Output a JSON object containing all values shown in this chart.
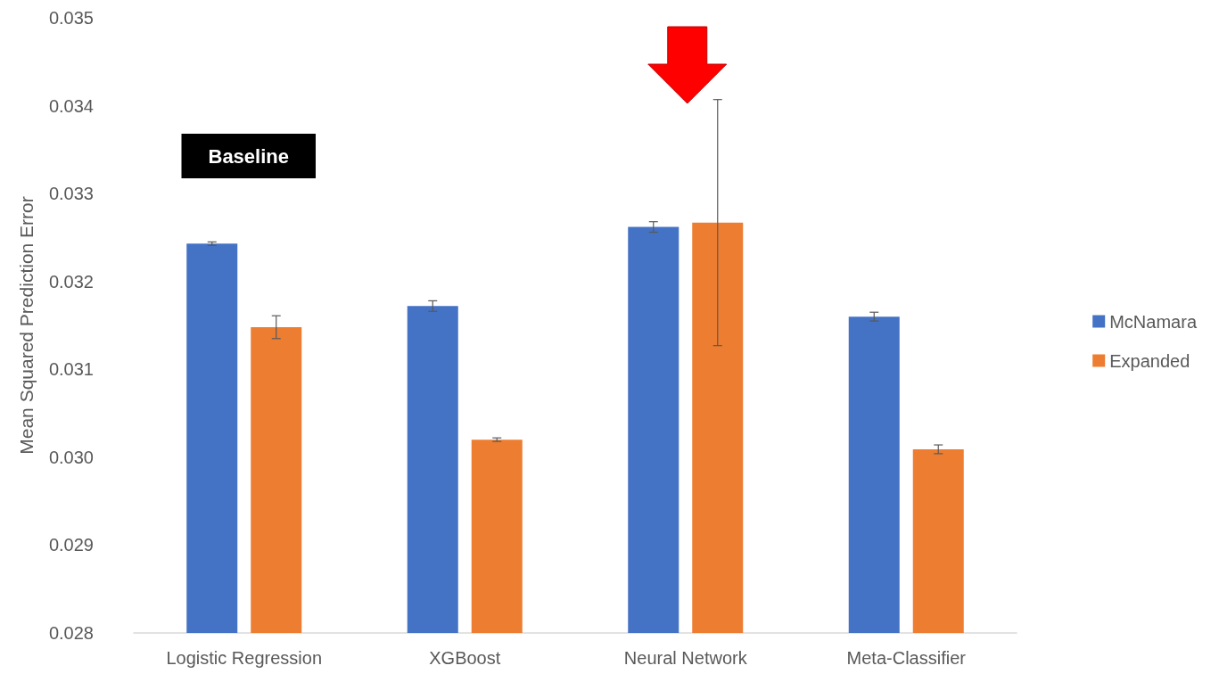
{
  "chart_data": {
    "type": "bar",
    "ylabel": "Mean Squared Prediction Error",
    "categories": [
      "Logistic Regression",
      "XGBoost",
      "Neural Network",
      "Meta-Classifier"
    ],
    "series": [
      {
        "name": "McNamara",
        "color": "#4472c4",
        "values": [
          0.03243,
          0.03172,
          0.03262,
          0.0316
        ],
        "errors": [
          2e-05,
          6e-05,
          6e-05,
          5e-05
        ]
      },
      {
        "name": "Expanded",
        "color": "#ed7d31",
        "values": [
          0.03148,
          0.0302,
          0.03267,
          0.03009
        ],
        "errors": [
          0.00013,
          2e-05,
          0.0014,
          5e-05
        ]
      }
    ],
    "ylim": [
      0.028,
      0.035
    ],
    "yticks": [
      0.028,
      0.029,
      {
        "value": 0.03,
        "label": "0.030"
      },
      0.031,
      0.032,
      0.033,
      0.034,
      0.035
    ],
    "grid": false,
    "legend": "right",
    "annotations": [
      "Baseline"
    ]
  }
}
